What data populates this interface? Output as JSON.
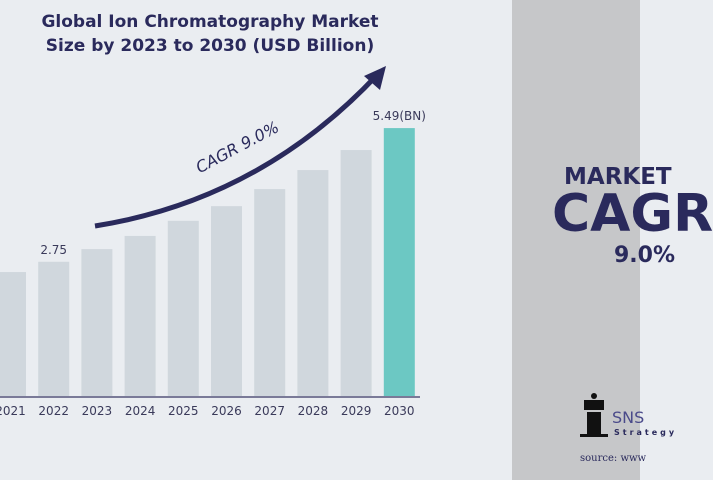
{
  "chart_data": {
    "type": "bar",
    "title": "Global Ion Chromatography Market Size by 2023 to 2030 (USD Billion)",
    "title_lines": [
      "Global Ion Chromatography Market",
      "Size by 2023 to 2030 (USD Billion)"
    ],
    "categories": [
      "2021",
      "2022",
      "2023",
      "2024",
      "2025",
      "2026",
      "2027",
      "2028",
      "2029",
      "2030"
    ],
    "values": [
      2.54,
      2.75,
      3.01,
      3.28,
      3.59,
      3.89,
      4.24,
      4.63,
      5.04,
      5.49
    ],
    "data_labels": {
      "2022": "2.75",
      "2030": "5.49(BN)"
    },
    "annotation": "CAGR 9.0%",
    "colors": {
      "bar": "#d0d7dd",
      "highlight": "#6cc8c3",
      "text": "#2a2a5c",
      "arrow": "#2a2a5c"
    }
  },
  "side": {
    "line1": "MARKET",
    "line2": "CAGR",
    "line3": "9.0%",
    "logo": "SNS",
    "logo_sub": "Strategy",
    "source": "source: www"
  }
}
